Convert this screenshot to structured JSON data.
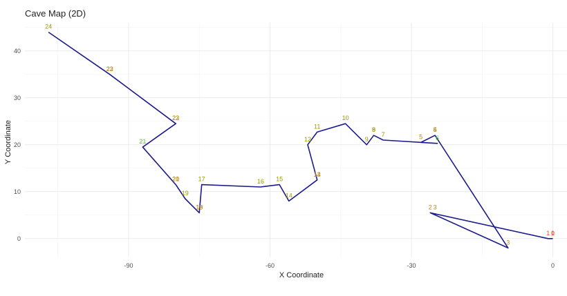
{
  "chart_data": {
    "type": "line",
    "title": "Cave Map (2D)",
    "xlabel": "X Coordinate",
    "ylabel": "Y Coordinate",
    "xlim": [
      -112,
      3
    ],
    "ylim": [
      -4,
      46
    ],
    "x_ticks": [
      -90,
      -60,
      -30,
      0
    ],
    "y_ticks": [
      0,
      10,
      20,
      30,
      40
    ],
    "grid": true,
    "line_color": "#1a1a8c",
    "points": [
      {
        "label": "0",
        "x": 0,
        "y": 0,
        "color": "#e8452a"
      },
      {
        "label": "1",
        "x": -1,
        "y": 0,
        "color": "#e8452a"
      },
      {
        "label": "2",
        "x": -26,
        "y": 5.5,
        "color": "#b8860b"
      },
      {
        "label": "3",
        "x": -9.5,
        "y": -2,
        "color": "#b8860b"
      },
      {
        "label": "4",
        "x": -25,
        "y": 22,
        "color": "#b8860b"
      },
      {
        "label": "5",
        "x": -28,
        "y": 20.5,
        "color": "#b8860b"
      },
      {
        "label": "6",
        "x": -24.5,
        "y": 20.3,
        "color": "#58c034"
      },
      {
        "label": "7",
        "x": -36,
        "y": 21,
        "color": "#9a9a00"
      },
      {
        "label": "8",
        "x": -38,
        "y": 22,
        "color": "#9a9a00"
      },
      {
        "label": "9",
        "x": -39.5,
        "y": 20,
        "color": "#9a9a00"
      },
      {
        "label": "10",
        "x": -44,
        "y": 24.5,
        "color": "#9a9a00"
      },
      {
        "label": "11",
        "x": -50,
        "y": 22.7,
        "color": "#9a9a00"
      },
      {
        "label": "12",
        "x": -52,
        "y": 20,
        "color": "#9a9a00"
      },
      {
        "label": "13",
        "x": -50,
        "y": 12.5,
        "color": "#b8860b"
      },
      {
        "label": "14",
        "x": -56,
        "y": 8,
        "color": "#9a9a00"
      },
      {
        "label": "15",
        "x": -58,
        "y": 11.5,
        "color": "#9a9a00"
      },
      {
        "label": "16",
        "x": -62,
        "y": 11,
        "color": "#9a9a00"
      },
      {
        "label": "17",
        "x": -74.5,
        "y": 11.5,
        "color": "#9a9a00"
      },
      {
        "label": "18",
        "x": -75,
        "y": 5.5,
        "color": "#b8860b"
      },
      {
        "label": "19",
        "x": -78,
        "y": 8.5,
        "color": "#9a9a00"
      },
      {
        "label": "20",
        "x": -80,
        "y": 11.5,
        "color": "#b8860b"
      },
      {
        "label": "21",
        "x": -87,
        "y": 19.5,
        "color": "#58c034"
      },
      {
        "label": "22",
        "x": -80,
        "y": 24.5,
        "color": "#b8860b"
      },
      {
        "label": "23",
        "x": -94,
        "y": 35,
        "color": "#b8860b"
      },
      {
        "label": "24",
        "x": -107,
        "y": 44,
        "color": "#9a9a00"
      }
    ],
    "overlay_labels": [
      {
        "label": "1",
        "x": 0,
        "y": 0,
        "color": "#e8452a"
      },
      {
        "label": "3",
        "x": -25,
        "y": 5.5,
        "color": "#b8860b"
      },
      {
        "label": "5",
        "x": -25,
        "y": 22,
        "color": "#b8860b"
      },
      {
        "label": "9",
        "x": -38,
        "y": 22,
        "color": "#9a9a00"
      },
      {
        "label": "14",
        "x": -50,
        "y": 12.5,
        "color": "#b8860b"
      },
      {
        "label": "19",
        "x": -75,
        "y": 5.5,
        "color": "#b8860b"
      },
      {
        "label": "21",
        "x": -80,
        "y": 11.5,
        "color": "#b8860b"
      },
      {
        "label": "23",
        "x": -80,
        "y": 24.5,
        "color": "#b8860b"
      },
      {
        "label": "22",
        "x": -94,
        "y": 35,
        "color": "#b8860b"
      }
    ]
  }
}
